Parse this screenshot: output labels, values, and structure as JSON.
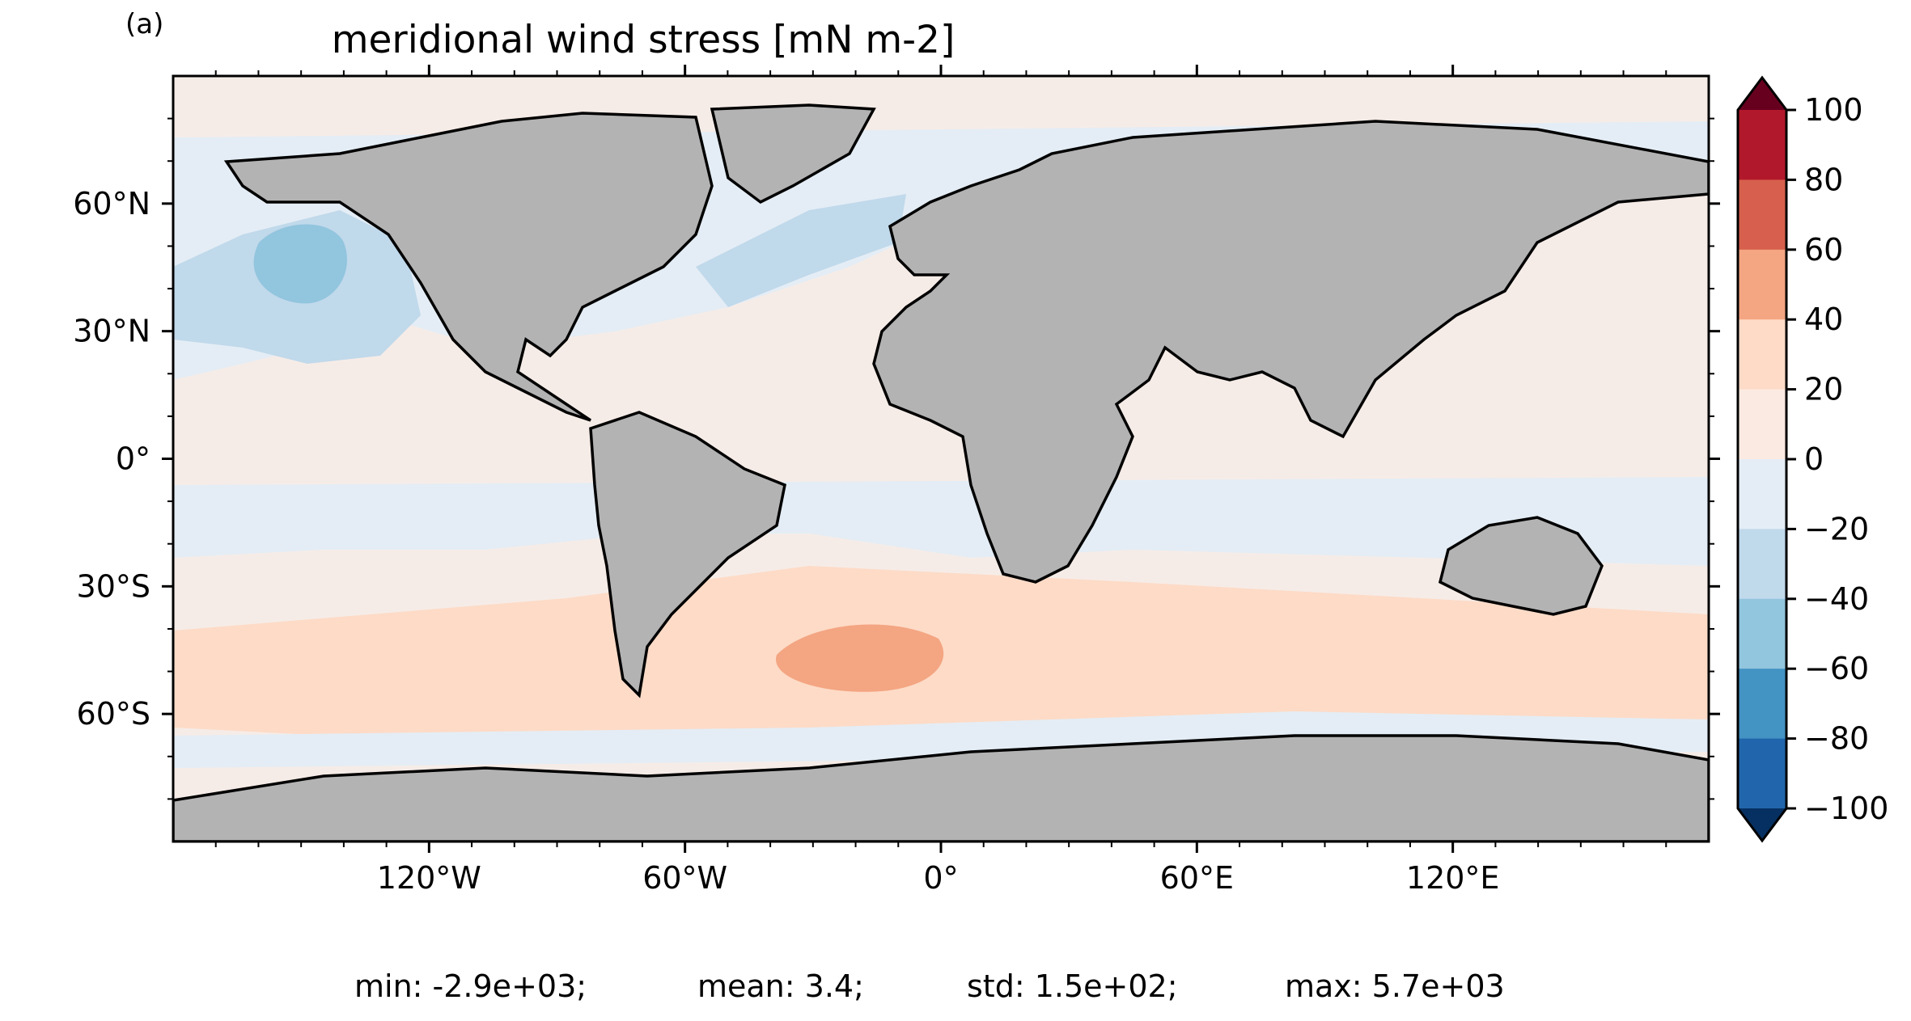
{
  "panel_label": "(a)",
  "title": "meridional wind stress [mN m-2]",
  "map": {
    "projection": "PlateCarree",
    "extent_lon": [
      -180,
      180
    ],
    "extent_lat": [
      -90,
      90
    ],
    "land_color": "#b3b3b3",
    "coastline_color": "#000000",
    "lon_ticks": [
      {
        "value": -120,
        "label": "120°W"
      },
      {
        "value": -60,
        "label": "60°W"
      },
      {
        "value": 0,
        "label": "0°"
      },
      {
        "value": 60,
        "label": "60°E"
      },
      {
        "value": 120,
        "label": "120°E"
      }
    ],
    "lat_ticks": [
      {
        "value": 60,
        "label": "60°N"
      },
      {
        "value": 30,
        "label": "30°N"
      },
      {
        "value": 0,
        "label": "0°"
      },
      {
        "value": -30,
        "label": "30°S"
      },
      {
        "value": -60,
        "label": "60°S"
      }
    ]
  },
  "colorbar": {
    "cmap": "RdBu_r",
    "extend": "both",
    "levels": [
      100,
      80,
      60,
      40,
      20,
      0,
      -20,
      -40,
      -60,
      -80,
      -100
    ],
    "tick_labels": [
      "100",
      "80",
      "60",
      "40",
      "20",
      "0",
      "−20",
      "−40",
      "−60",
      "−80",
      "−100"
    ],
    "colors": [
      "#b2182b",
      "#d6604d",
      "#f4a582",
      "#fddbc7",
      "#fbeae1",
      "#e4edf5",
      "#c0d9eb",
      "#92c5de",
      "#4393c3",
      "#2166ac"
    ],
    "over_color": "#67001f",
    "under_color": "#053061"
  },
  "stats": {
    "min": "min: -2.9e+03;",
    "mean": "mean: 3.4;",
    "std": "std: 1.5e+02;",
    "max": "max: 5.7e+03"
  }
}
